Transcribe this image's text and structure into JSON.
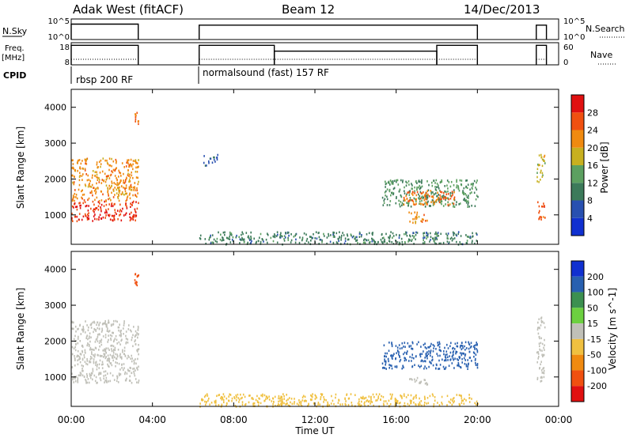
{
  "header": {
    "station": "Adak West (fitACF)",
    "beam": "Beam 12",
    "date": "14/Dec/2013"
  },
  "strip_labels": {
    "nsky": "N.Sky",
    "freq_line1": "Freq.",
    "freq_line2": "[MHz]",
    "cpid": "CPID",
    "nsearch": "N.Search",
    "nave": "Nave"
  },
  "nsky_ticks": {
    "top": "10^5",
    "bottom": "10^0",
    "right_top": "10^5",
    "right_bottom": "10^0"
  },
  "freq_ticks": {
    "left_top": "18",
    "left_bottom": "8",
    "right_top": "60",
    "right_bottom": "0"
  },
  "cpid": [
    {
      "label": "rbsp 200 RF",
      "start_h": 0.0,
      "end_h": 6.3
    },
    {
      "label": "normalsound (fast) 157 RF",
      "start_h": 6.3,
      "end_h": 24.0
    }
  ],
  "axis": {
    "xlabel": "Time UT",
    "ylabel": "Slant Range [km]",
    "xticks": [
      "00:00",
      "04:00",
      "08:00",
      "12:00",
      "16:00",
      "20:00",
      "00:00"
    ],
    "yticks": [
      "1000",
      "2000",
      "3000",
      "4000"
    ]
  },
  "power_scale": {
    "title": "Power [dB]",
    "ticks": [
      "4",
      "8",
      "12",
      "16",
      "20",
      "24",
      "28"
    ],
    "colors": [
      "#1030d0",
      "#2850b0",
      "#3c7a5a",
      "#5ca060",
      "#c8b020",
      "#f08a10",
      "#f05010",
      "#e01010"
    ]
  },
  "velocity_scale": {
    "title": "Velocity [m s^-1]",
    "ticks": [
      "200",
      "100",
      "50",
      "15",
      "-15",
      "-50",
      "-100",
      "-200"
    ],
    "colors": [
      "#1030d0",
      "#2860b0",
      "#3c9050",
      "#6cd040",
      "#c0c0b8",
      "#f0c040",
      "#f08a10",
      "#f05010",
      "#e01010"
    ]
  },
  "chart_data": {
    "type": "heatmap",
    "x_range_hours": [
      0,
      24
    ],
    "y_range_km": [
      180,
      4500
    ],
    "segments_on_hours": [
      [
        0.0,
        3.3
      ],
      [
        6.3,
        20.0
      ],
      [
        22.9,
        23.4
      ]
    ],
    "power_regions": [
      {
        "t0": 0.0,
        "t1": 3.3,
        "r0": 850,
        "r1": 1400,
        "db": 28
      },
      {
        "t0": 0.0,
        "t1": 3.3,
        "r0": 1400,
        "r1": 2600,
        "db": 22
      },
      {
        "t0": 3.1,
        "t1": 3.3,
        "r0": 3550,
        "r1": 3900,
        "db": 24
      },
      {
        "t0": 6.3,
        "t1": 20.0,
        "r0": 200,
        "r1": 550,
        "db": 10
      },
      {
        "t0": 15.3,
        "t1": 20.0,
        "r0": 1250,
        "r1": 2000,
        "db": 12
      },
      {
        "t0": 16.3,
        "t1": 19.0,
        "r0": 1300,
        "r1": 1700,
        "db": 24
      },
      {
        "t0": 16.6,
        "t1": 17.6,
        "r0": 800,
        "r1": 1100,
        "db": 22
      },
      {
        "t0": 6.5,
        "t1": 7.2,
        "r0": 2400,
        "r1": 2700,
        "db": 6
      },
      {
        "t0": 22.9,
        "t1": 23.3,
        "r0": 900,
        "r1": 1400,
        "db": 26
      },
      {
        "t0": 22.9,
        "t1": 23.3,
        "r0": 1900,
        "r1": 2700,
        "db": 18
      }
    ],
    "velocity_regions": [
      {
        "t0": 0.0,
        "t1": 3.3,
        "r0": 850,
        "r1": 2600,
        "v": 0
      },
      {
        "t0": 3.1,
        "t1": 3.3,
        "r0": 3550,
        "r1": 3900,
        "v": -200
      },
      {
        "t0": 6.3,
        "t1": 20.0,
        "r0": 200,
        "r1": 550,
        "v": -50
      },
      {
        "t0": 15.3,
        "t1": 20.0,
        "r0": 1250,
        "r1": 2000,
        "v": 120
      },
      {
        "t0": 16.6,
        "t1": 17.6,
        "r0": 800,
        "r1": 1000,
        "v": 0
      },
      {
        "t0": 22.9,
        "t1": 23.3,
        "r0": 900,
        "r1": 2700,
        "v": 0
      }
    ],
    "nsky_levels": [
      {
        "t0": 0.0,
        "t1": 3.3,
        "level": 0.75
      },
      {
        "t0": 6.3,
        "t1": 20.0,
        "level": 0.7
      },
      {
        "t0": 22.9,
        "t1": 23.4,
        "level": 0.7
      }
    ],
    "freq_levels": [
      {
        "t0": 0.0,
        "t1": 3.3,
        "level": 0.88
      },
      {
        "t0": 6.3,
        "t1": 10.0,
        "level": 0.88
      },
      {
        "t0": 10.0,
        "t1": 18.0,
        "level": 0.62
      },
      {
        "t0": 18.0,
        "t1": 20.0,
        "level": 0.88
      },
      {
        "t0": 22.9,
        "t1": 23.4,
        "level": 0.88
      }
    ]
  }
}
